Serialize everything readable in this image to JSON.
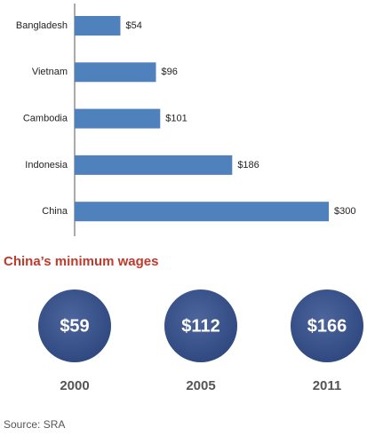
{
  "chart_data": [
    {
      "type": "hbar",
      "categories": [
        "Bangladesh",
        "Vietnam",
        "Cambodia",
        "Indonesia",
        "China"
      ],
      "values": [
        54,
        96,
        101,
        186,
        300
      ],
      "value_labels": [
        "$54",
        "$96",
        "$101",
        "$186",
        "$300"
      ],
      "color": "#4f81bd"
    },
    {
      "type": "circles",
      "title": "China’s minimum wages",
      "categories": [
        "2000",
        "2005",
        "2011"
      ],
      "values": [
        59,
        112,
        166
      ],
      "value_labels": [
        "$59",
        "$112",
        "$166"
      ],
      "color": "#34508f"
    }
  ],
  "source": "Source: SRA"
}
